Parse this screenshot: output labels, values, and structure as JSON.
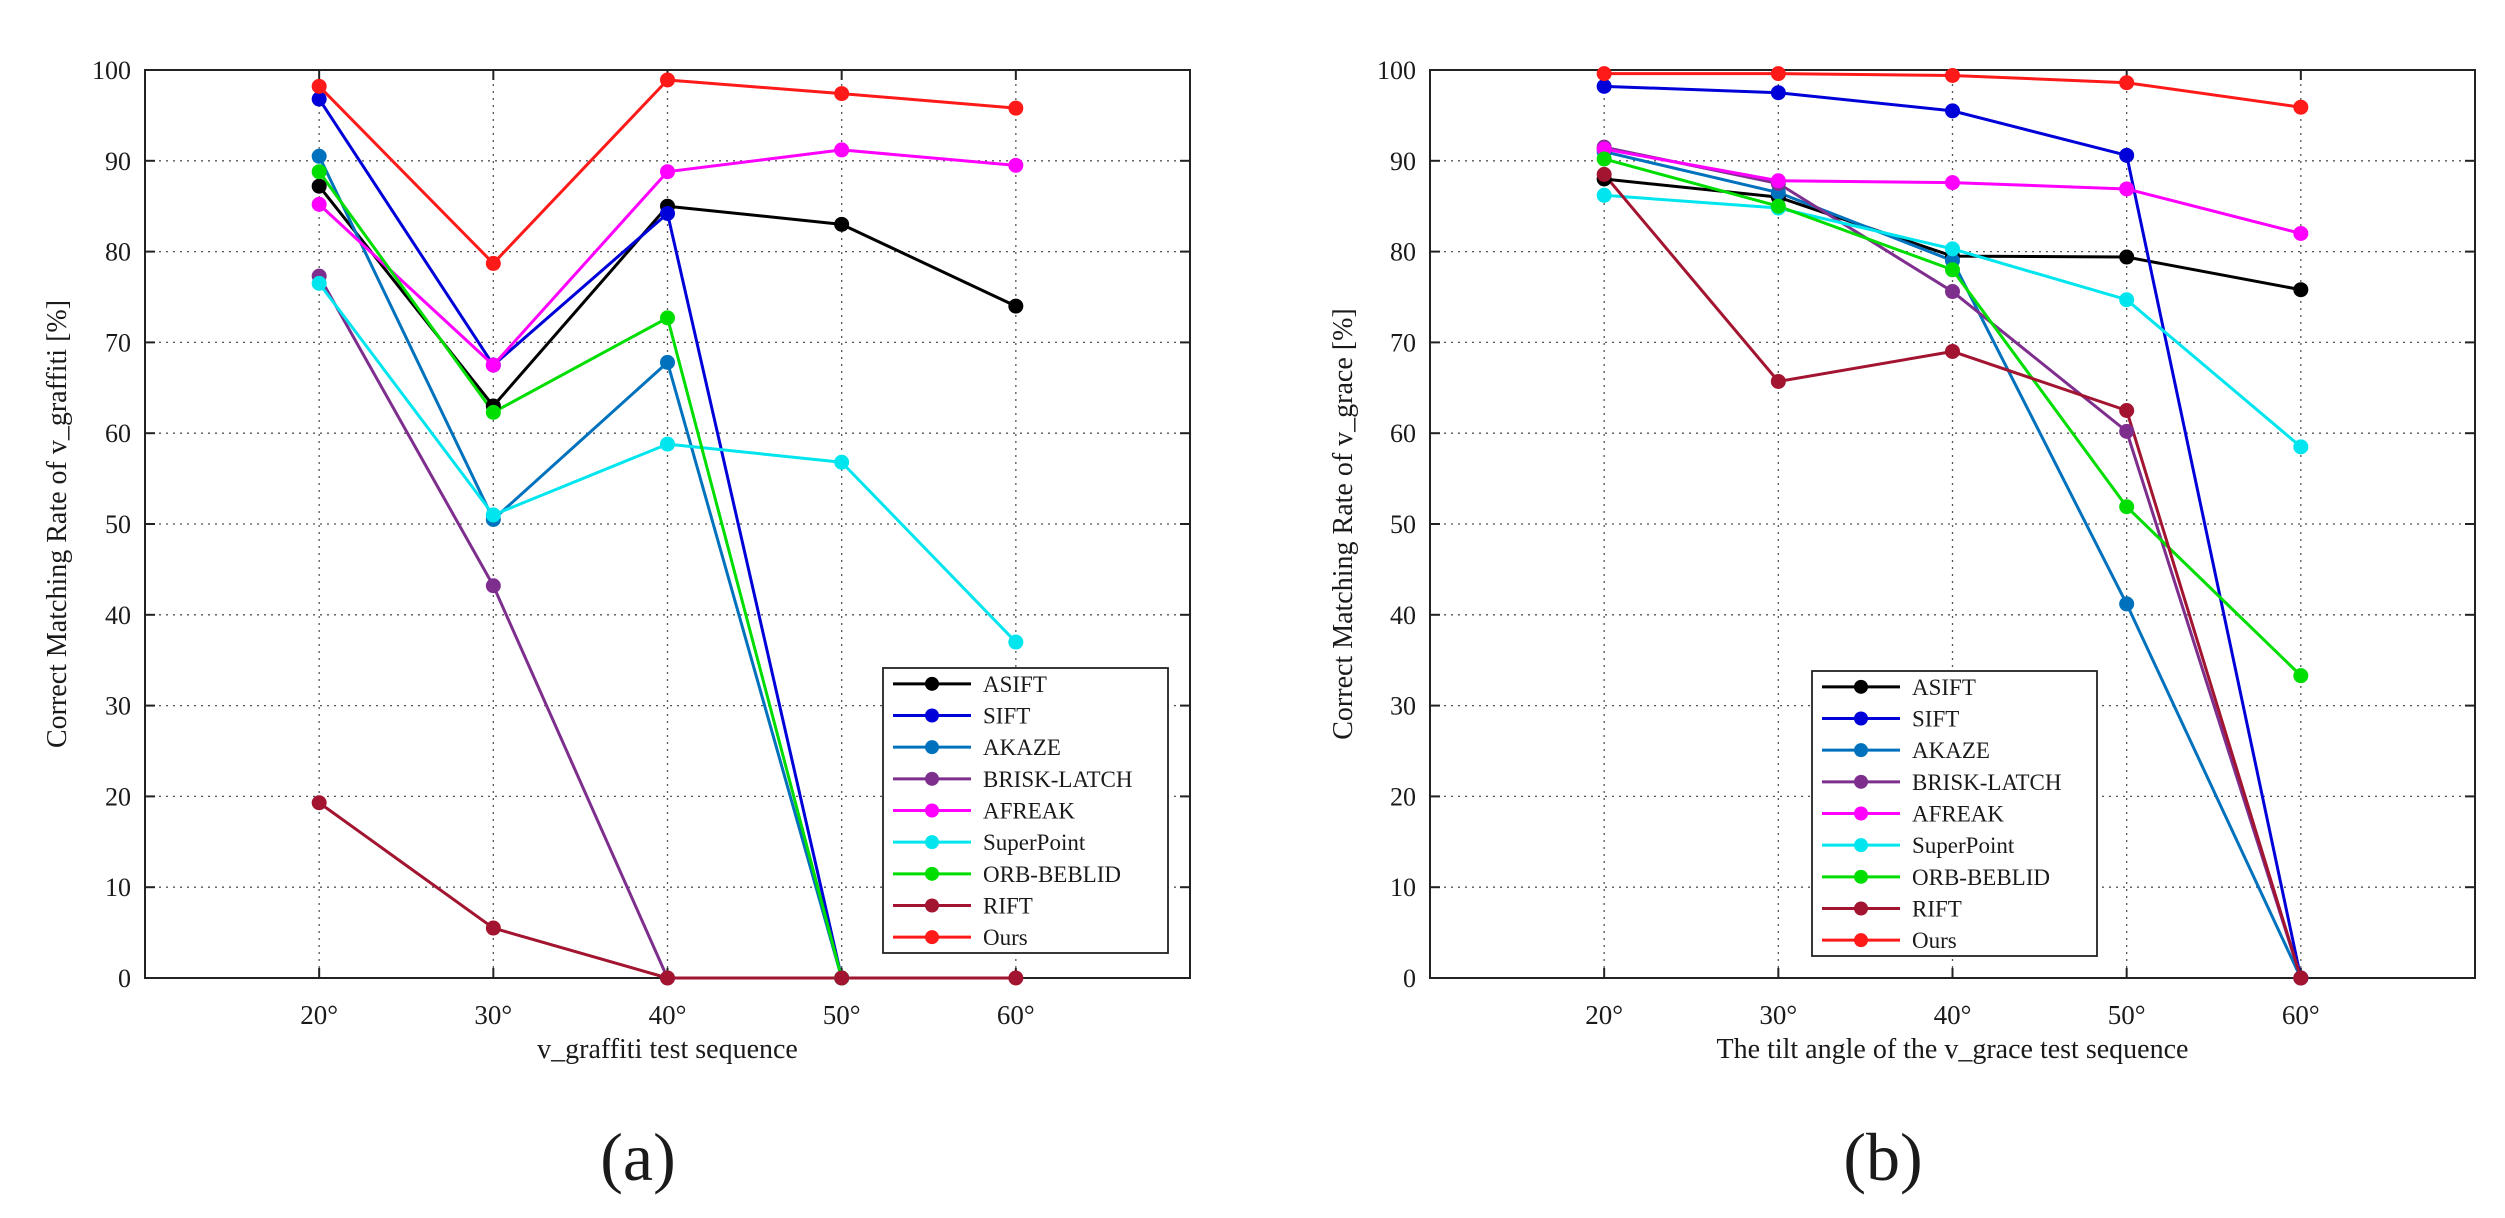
{
  "chart_data": [
    {
      "type": "line",
      "categories": [
        "20°",
        "30°",
        "40°",
        "50°",
        "60°"
      ],
      "xlabel": "v_graffiti test sequence",
      "ylabel": "Correct Matching Rate of v_graffiti [%]",
      "ylim": [
        0,
        100
      ],
      "yticks": [
        0,
        10,
        20,
        30,
        40,
        50,
        60,
        70,
        80,
        90,
        100
      ],
      "grid": true,
      "legend_position": "bottom-right",
      "panel_label": "(a)",
      "series": [
        {
          "name": "ASIFT",
          "color": "#000000",
          "values": [
            87.2,
            63.0,
            85.0,
            83.0,
            74.0
          ]
        },
        {
          "name": "SIFT",
          "color": "#0000d8",
          "values": [
            96.8,
            67.5,
            84.2,
            0,
            null
          ]
        },
        {
          "name": "AKAZE",
          "color": "#0072bd",
          "values": [
            90.5,
            50.5,
            67.8,
            0,
            null
          ]
        },
        {
          "name": "BRISK-LATCH",
          "color": "#7e2f8e",
          "values": [
            77.3,
            43.2,
            0,
            null,
            null
          ]
        },
        {
          "name": "AFREAK",
          "color": "#ff00ff",
          "values": [
            85.2,
            67.5,
            88.8,
            91.2,
            89.5
          ]
        },
        {
          "name": "SuperPoint",
          "color": "#00e5ee",
          "values": [
            76.5,
            51.0,
            58.8,
            56.8,
            37.0
          ]
        },
        {
          "name": "ORB-BEBLID",
          "color": "#00dd00",
          "values": [
            88.8,
            62.3,
            72.7,
            0,
            null
          ]
        },
        {
          "name": "RIFT",
          "color": "#a2142f",
          "values": [
            19.3,
            5.5,
            0,
            0,
            0
          ]
        },
        {
          "name": "Ours",
          "color": "#ff1a1a",
          "values": [
            98.2,
            78.7,
            98.9,
            97.4,
            95.8
          ]
        }
      ]
    },
    {
      "type": "line",
      "categories": [
        "20°",
        "30°",
        "40°",
        "50°",
        "60°"
      ],
      "xlabel": "The tilt angle of the v_grace test sequence",
      "ylabel": "Correct Matching Rate of v_grace [%]",
      "ylim": [
        0,
        100
      ],
      "yticks": [
        0,
        10,
        20,
        30,
        40,
        50,
        60,
        70,
        80,
        90,
        100
      ],
      "grid": true,
      "legend_position": "bottom-center",
      "panel_label": "(b)",
      "series": [
        {
          "name": "ASIFT",
          "color": "#000000",
          "values": [
            88.0,
            86.0,
            79.5,
            79.4,
            75.8
          ]
        },
        {
          "name": "SIFT",
          "color": "#0000d8",
          "values": [
            98.2,
            97.5,
            95.5,
            90.6,
            0
          ]
        },
        {
          "name": "AKAZE",
          "color": "#0072bd",
          "values": [
            91.0,
            86.5,
            79.0,
            41.2,
            0
          ]
        },
        {
          "name": "BRISK-LATCH",
          "color": "#7e2f8e",
          "values": [
            91.5,
            87.5,
            75.6,
            60.2,
            0
          ]
        },
        {
          "name": "AFREAK",
          "color": "#ff00ff",
          "values": [
            91.3,
            87.8,
            87.6,
            86.9,
            82.0
          ]
        },
        {
          "name": "SuperPoint",
          "color": "#00e5ee",
          "values": [
            86.2,
            84.8,
            80.3,
            74.7,
            58.5
          ]
        },
        {
          "name": "ORB-BEBLID",
          "color": "#00dd00",
          "values": [
            90.2,
            85.0,
            78.0,
            51.9,
            33.3
          ]
        },
        {
          "name": "RIFT",
          "color": "#a2142f",
          "values": [
            88.5,
            65.7,
            69.0,
            62.5,
            0
          ]
        },
        {
          "name": "Ours",
          "color": "#ff1a1a",
          "values": [
            99.6,
            99.6,
            99.4,
            98.6,
            95.9
          ]
        }
      ]
    }
  ]
}
